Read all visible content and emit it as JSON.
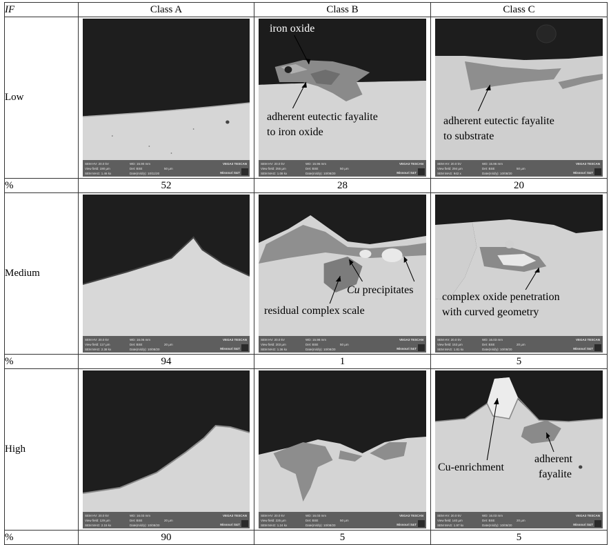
{
  "header": {
    "row_label": "IF",
    "classes": [
      "Class A",
      "Class B",
      "Class C"
    ]
  },
  "rows": [
    {
      "label": "Low",
      "pct_label": "%",
      "pcts": [
        "52",
        "28",
        "20"
      ]
    },
    {
      "label": "Medium",
      "pct_label": "%",
      "pcts": [
        "94",
        "1",
        "5"
      ]
    },
    {
      "label": "High",
      "pct_label": "%",
      "pcts": [
        "90",
        "5",
        "5"
      ]
    }
  ],
  "annotations": {
    "iron_oxide": "iron oxide",
    "eutectic_fayalite_1": "adherent eutectic fayalite",
    "eutectic_fayalite_2": "to iron oxide",
    "substrate_1": "adherent eutectic fayalite",
    "substrate_2": "to substrate",
    "cu_italic": "Cu",
    "cu_rest": " precipitates",
    "residual": "residual complex scale",
    "complex_1": "complex oxide penetration",
    "complex_2": "with curved geometry",
    "cu_enrich": "Cu-enrichment",
    "adherent": "adherent",
    "fayalite": "fayalite"
  },
  "sem_bars": {
    "hv": "SEM HV: 20.0 kV",
    "wd": "WD: 15.96 mm",
    "vf_label": "View field:",
    "det": "Det: BSE",
    "mag_label": "SEM MAG:",
    "brand": "VEGA3 TESCAN",
    "inst": "Missouri S&T",
    "items": [
      {
        "wd": "WD: 15.90 mm",
        "vf": "View field: 190 µm",
        "mag": "SEM MAG: 1.46 kx",
        "date": "Date(m/d/y): 10/11/20",
        "scale": "50 µm"
      },
      {
        "wd": "WD: 15.96 mm",
        "vf": "View field: 255 µm",
        "mag": "SEM MAG: 1.08 kx",
        "date": "Date(m/d/y): 10/08/20",
        "scale": "50 µm"
      },
      {
        "wd": "WD: 15.96 mm",
        "vf": "View field: 294 µm",
        "mag": "SEM MAG: 942 x",
        "date": "Date(m/d/y): 10/08/20",
        "scale": "50 µm"
      },
      {
        "wd": "WD: 16.06 mm",
        "vf": "View field: 117 µm",
        "mag": "SEM MAG: 2.38 kx",
        "date": "Date(m/d/y): 10/08/20",
        "scale": "20 µm"
      },
      {
        "wd": "WD: 15.98 mm",
        "vf": "View field: 203 µm",
        "mag": "SEM MAG: 1.36 kx",
        "date": "Date(m/d/y): 10/08/20",
        "scale": "50 µm"
      },
      {
        "wd": "WD: 16.03 mm",
        "vf": "View field: 153 µm",
        "mag": "SEM MAG: 1.81 kx",
        "date": "Date(m/d/y): 10/08/20",
        "scale": "20 µm"
      },
      {
        "wd": "WD: 16.03 mm",
        "vf": "View field: 129 µm",
        "mag": "SEM MAG: 2.15 kx",
        "date": "Date(m/d/y): 10/08/20",
        "scale": "20 µm"
      },
      {
        "wd": "WD: 16.03 mm",
        "vf": "View field: 225 µm",
        "mag": "SEM MAG: 1.24 kx",
        "date": "Date(m/d/y): 10/08/20",
        "scale": "50 µm"
      },
      {
        "wd": "WD: 16.03 mm",
        "vf": "View field: 140 µm",
        "mag": "SEM MAG: 1.97 kx",
        "date": "Date(m/d/y): 10/08/20",
        "scale": "20 µm"
      }
    ]
  }
}
